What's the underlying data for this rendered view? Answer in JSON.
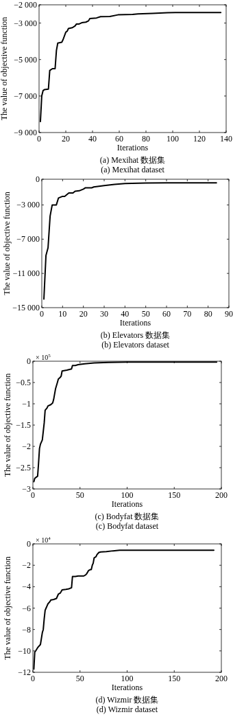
{
  "chart_data": [
    {
      "type": "line",
      "title": "(a) Mexihat 数据集",
      "subtitle": "(a) Mexihat dataset",
      "xlabel": "Iterations",
      "ylabel": "The value of objective function",
      "grid": false,
      "xlim": [
        0,
        140
      ],
      "xticks": [
        0,
        20,
        40,
        60,
        80,
        100,
        120,
        140
      ],
      "ylim": [
        -9000,
        -2000
      ],
      "yticks": [
        {
          "value": -9000,
          "label": "−9 000"
        },
        {
          "value": -7000,
          "label": "−7 000"
        },
        {
          "value": -5000,
          "label": "−5 000"
        },
        {
          "value": -3000,
          "label": "−3 000"
        },
        {
          "value": -2000,
          "label": "−2 000"
        }
      ],
      "series": [
        {
          "color": "#000000",
          "x": [
            1,
            2,
            3,
            4,
            7,
            8,
            10,
            12,
            13,
            14,
            17,
            18,
            20,
            21,
            22,
            25,
            27,
            28,
            30,
            32,
            35,
            37,
            38,
            43,
            46,
            53,
            59,
            70,
            74,
            85,
            96,
            120,
            136
          ],
          "values": [
            -8400,
            -7000,
            -6700,
            -6650,
            -6620,
            -5600,
            -5500,
            -5500,
            -4500,
            -4100,
            -4050,
            -3900,
            -3500,
            -3450,
            -3300,
            -3250,
            -3150,
            -3050,
            -3050,
            -2980,
            -2950,
            -2880,
            -2750,
            -2720,
            -2650,
            -2640,
            -2550,
            -2530,
            -2500,
            -2470,
            -2430,
            -2420,
            -2420
          ]
        }
      ]
    },
    {
      "type": "line",
      "title": "(b) Elevators 数据集",
      "subtitle": "(b) Elevators dataset",
      "xlabel": "Iterations",
      "ylabel": "The value of objective function",
      "grid": false,
      "xlim": [
        0,
        90
      ],
      "xticks": [
        0,
        10,
        20,
        30,
        40,
        50,
        60,
        70,
        80,
        90
      ],
      "ylim": [
        -15000,
        0
      ],
      "yticks": [
        {
          "value": -15000,
          "label": "−15 000"
        },
        {
          "value": -11000,
          "label": "−11 000"
        },
        {
          "value": -7000,
          "label": "−7 000"
        },
        {
          "value": -3000,
          "label": "−3 000"
        },
        {
          "value": 0,
          "label": "0"
        }
      ],
      "series": [
        {
          "color": "#000000",
          "x": [
            1,
            2,
            3,
            4,
            5,
            7,
            8,
            10,
            11,
            13,
            15,
            16,
            18,
            20,
            21,
            24,
            25,
            30,
            35,
            40,
            50,
            60,
            84
          ],
          "values": [
            -14000,
            -8900,
            -8000,
            -4300,
            -3000,
            -3000,
            -2200,
            -2000,
            -2000,
            -1600,
            -1600,
            -1400,
            -1350,
            -1150,
            -1000,
            -1000,
            -900,
            -750,
            -600,
            -500,
            -450,
            -430,
            -420
          ]
        }
      ]
    },
    {
      "type": "line",
      "title": "(c) Bodyfat 数据集",
      "subtitle": "(c) Bodyfat dataset",
      "xlabel": "Iterations",
      "ylabel": "The value of objective function",
      "grid": false,
      "annotations": [
        "× 10$^{5}$"
      ],
      "xlim": [
        0,
        200
      ],
      "xticks": [
        0,
        50,
        100,
        150,
        200
      ],
      "ylim": [
        -3,
        0
      ],
      "yticks": [
        {
          "value": -3,
          "label": "−3"
        },
        {
          "value": -2.5,
          "label": "−2.5"
        },
        {
          "value": -2,
          "label": "−2"
        },
        {
          "value": -1.5,
          "label": "−1.5"
        },
        {
          "value": -1,
          "label": "−1"
        },
        {
          "value": -0.5,
          "label": "−0.5"
        },
        {
          "value": 0,
          "label": "0"
        }
      ],
      "series": [
        {
          "color": "#000000",
          "x": [
            1,
            2,
            5,
            6,
            7,
            8,
            10,
            12,
            13,
            15,
            16,
            19,
            21,
            22,
            24,
            26,
            27,
            29,
            30,
            31,
            36,
            41,
            42,
            45,
            48,
            55,
            65,
            80,
            100,
            195
          ],
          "values": [
            -2.83,
            -2.75,
            -2.7,
            -2.4,
            -2.05,
            -1.95,
            -1.85,
            -1.45,
            -1.15,
            -1.1,
            -1.05,
            -1.02,
            -0.98,
            -0.9,
            -0.65,
            -0.5,
            -0.42,
            -0.38,
            -0.35,
            -0.23,
            -0.21,
            -0.18,
            -0.1,
            -0.1,
            -0.08,
            -0.06,
            -0.04,
            -0.03,
            -0.02,
            -0.02
          ]
        }
      ]
    },
    {
      "type": "line",
      "title": "(d) Wizmir 数据集",
      "subtitle": "(d) Wizmir dataset",
      "xlabel": "Iterations",
      "ylabel": "The value of objective function",
      "grid": false,
      "annotations": [
        "× 10$^{4}$"
      ],
      "xlim": [
        0,
        200
      ],
      "xticks": [
        0,
        50,
        100,
        150,
        200
      ],
      "ylim": [
        -12,
        0
      ],
      "yticks": [
        {
          "value": -12,
          "label": "−12"
        },
        {
          "value": -10,
          "label": "−10"
        },
        {
          "value": -8,
          "label": "−8"
        },
        {
          "value": -6,
          "label": "−6"
        },
        {
          "value": -4,
          "label": "−4"
        },
        {
          "value": -2,
          "label": "−2"
        },
        {
          "value": 0,
          "label": "0"
        }
      ],
      "series": [
        {
          "color": "#000000",
          "x": [
            1,
            2,
            3,
            5,
            8,
            10,
            11,
            12,
            13,
            14,
            15,
            16,
            18,
            19,
            22,
            25,
            27,
            29,
            31,
            35,
            38,
            41,
            42,
            45,
            48,
            54,
            56,
            57,
            59,
            61,
            62,
            63,
            64,
            65,
            67,
            68,
            70,
            72,
            78,
            85,
            92,
            120,
            192
          ],
          "values": [
            -11.7,
            -10.1,
            -10.0,
            -9.7,
            -9.4,
            -8.3,
            -8.0,
            -7.0,
            -6.2,
            -6.0,
            -5.8,
            -5.6,
            -5.4,
            -5.25,
            -5.2,
            -5.1,
            -4.7,
            -4.6,
            -4.3,
            -4.25,
            -4.2,
            -4.1,
            -3.05,
            -3.05,
            -3.0,
            -3.0,
            -2.9,
            -2.8,
            -2.5,
            -2.4,
            -2.4,
            -2.0,
            -1.8,
            -1.3,
            -1.2,
            -1.0,
            -0.8,
            -0.75,
            -0.72,
            -0.65,
            -0.6,
            -0.6,
            -0.6
          ]
        }
      ]
    }
  ]
}
